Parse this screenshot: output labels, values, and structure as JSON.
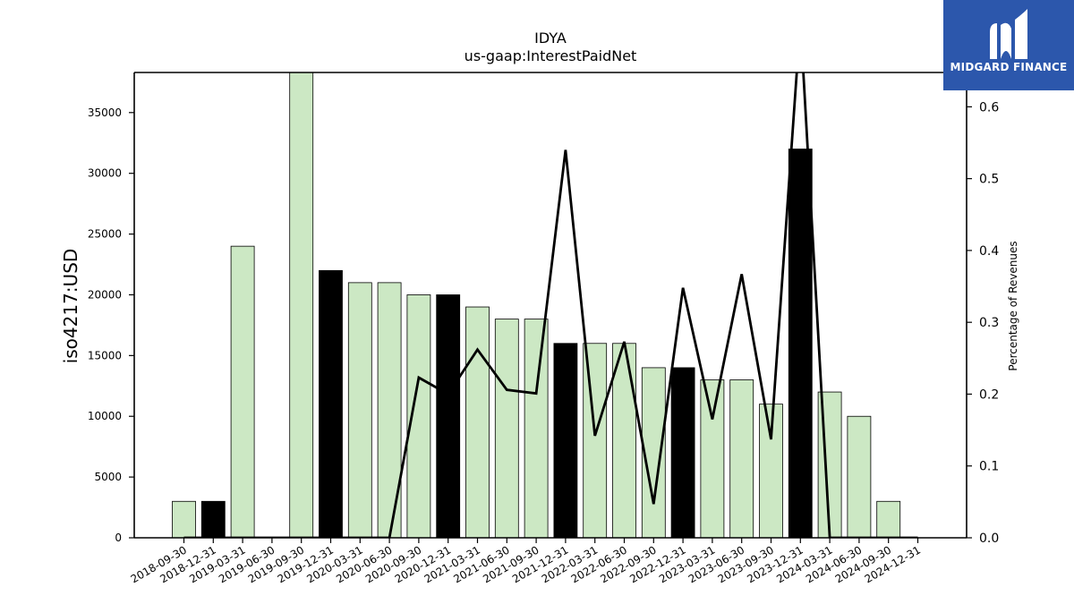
{
  "chart_data": {
    "type": "bar",
    "title": "IDYA",
    "subtitle": "us-gaap:InterestPaidNet",
    "ylabel": "iso4217:USD",
    "y2label": "Percentage of Revenues",
    "ylim": [
      0,
      38300
    ],
    "y2lim": [
      0,
      0.6478
    ],
    "yticks": [
      0,
      5000,
      10000,
      15000,
      20000,
      25000,
      30000,
      35000
    ],
    "y2ticks": [
      "0.0",
      "0.1",
      "0.2",
      "0.3",
      "0.4",
      "0.5",
      "0.6"
    ],
    "categories": [
      "2018-09-30",
      "2018-12-31",
      "2019-03-31",
      "2019-06-30",
      "2019-09-30",
      "2019-12-31",
      "2020-03-31",
      "2020-06-30",
      "2020-09-30",
      "2020-12-31",
      "2021-03-31",
      "2021-06-30",
      "2021-09-30",
      "2021-12-31",
      "2022-03-31",
      "2022-06-30",
      "2022-09-30",
      "2022-12-31",
      "2023-03-31",
      "2023-06-30",
      "2023-09-30",
      "2023-12-31",
      "2024-03-31",
      "2024-06-30",
      "2024-09-30",
      "2024-12-31"
    ],
    "series": [
      {
        "kind": "bar",
        "values": [
          3000,
          3000,
          24000,
          0,
          39000,
          22000,
          21000,
          21000,
          20000,
          20000,
          19000,
          18000,
          18000,
          16000,
          16000,
          16000,
          14000,
          14000,
          13000,
          13000,
          11000,
          32000,
          12000,
          10000,
          3000,
          0
        ],
        "colors": [
          "#cce8c4",
          "#000000",
          "#cce8c4",
          "#cce8c4",
          "#cce8c4",
          "#000000",
          "#cce8c4",
          "#cce8c4",
          "#cce8c4",
          "#000000",
          "#cce8c4",
          "#cce8c4",
          "#cce8c4",
          "#000000",
          "#cce8c4",
          "#cce8c4",
          "#cce8c4",
          "#000000",
          "#cce8c4",
          "#cce8c4",
          "#cce8c4",
          "#000000",
          "#cce8c4",
          "#cce8c4",
          "#cce8c4",
          "#000000"
        ]
      },
      {
        "kind": "line",
        "axis": "right",
        "values": [
          0,
          0,
          0,
          0,
          0,
          0,
          0,
          0,
          0.223,
          0.2,
          0.262,
          0.206,
          0.201,
          0.54,
          0.142,
          0.273,
          0.047,
          0.348,
          0.165,
          0.367,
          0.137,
          0.72,
          0,
          0,
          0,
          0
        ],
        "color": "#000000"
      }
    ],
    "grid": false,
    "legend": "none"
  },
  "logo": {
    "text": "MIDGARD FINANCE",
    "background": "#2c57ac",
    "foreground": "#ffffff"
  }
}
